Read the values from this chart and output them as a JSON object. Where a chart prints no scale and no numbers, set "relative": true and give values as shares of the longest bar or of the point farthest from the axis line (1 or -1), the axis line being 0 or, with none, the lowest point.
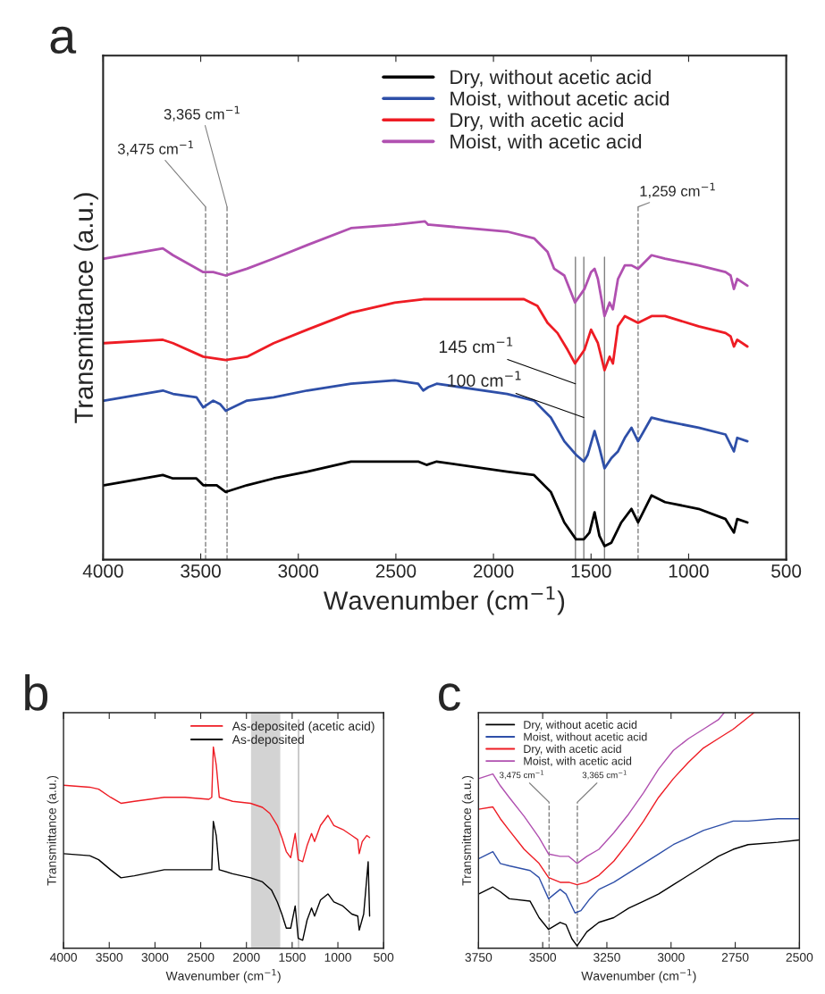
{
  "chart_data": [
    {
      "type": "line",
      "title": "a",
      "relative": true,
      "xlabel": "Wavenumber (cm$^{−1}$)",
      "ylabel": "Transmittance (a.u.)",
      "xlim": [
        4000,
        500
      ],
      "xticks": [
        4000,
        3500,
        3000,
        2500,
        2000,
        1500,
        1000,
        500
      ],
      "legend": "top right",
      "grid": false,
      "series": [
        {
          "name": "Dry, without acetic acid",
          "color": "#000000",
          "x": [
            3995,
            3694,
            3642,
            3522,
            3487,
            3418,
            3372,
            3263,
            3126,
            2954,
            2730,
            2506,
            2386,
            2343,
            2291,
            1930,
            1792,
            1706,
            1637,
            1577,
            1537,
            1508,
            1482,
            1457,
            1431,
            1396,
            1345,
            1293,
            1259,
            1190,
            1121,
            949,
            811,
            768,
            751,
            699
          ],
          "values": [
            0.22,
            0.25,
            0.24,
            0.24,
            0.22,
            0.22,
            0.2,
            0.22,
            0.24,
            0.26,
            0.29,
            0.29,
            0.29,
            0.28,
            0.29,
            0.26,
            0.25,
            0.2,
            0.11,
            0.06,
            0.06,
            0.08,
            0.14,
            0.07,
            0.04,
            0.05,
            0.11,
            0.15,
            0.11,
            0.19,
            0.17,
            0.15,
            0.12,
            0.08,
            0.12,
            0.11
          ]
        },
        {
          "name": "Moist, without acetic acid",
          "color": "#2e4fa8",
          "x": [
            3995,
            3694,
            3642,
            3522,
            3487,
            3436,
            3401,
            3372,
            3263,
            3126,
            2954,
            2730,
            2506,
            2386,
            2360,
            2334,
            2291,
            1930,
            1792,
            1706,
            1637,
            1577,
            1537,
            1517,
            1482,
            1457,
            1431,
            1396,
            1362,
            1327,
            1293,
            1259,
            1190,
            1121,
            949,
            811,
            768,
            751,
            699
          ],
          "values": [
            0.47,
            0.5,
            0.49,
            0.48,
            0.45,
            0.47,
            0.46,
            0.44,
            0.47,
            0.48,
            0.5,
            0.52,
            0.53,
            0.52,
            0.5,
            0.51,
            0.52,
            0.49,
            0.47,
            0.42,
            0.35,
            0.31,
            0.29,
            0.31,
            0.38,
            0.33,
            0.27,
            0.3,
            0.32,
            0.36,
            0.39,
            0.35,
            0.42,
            0.41,
            0.39,
            0.37,
            0.32,
            0.36,
            0.35
          ]
        },
        {
          "name": "Dry, with acetic acid",
          "color": "#ee1c24",
          "x": [
            3995,
            3694,
            3642,
            3487,
            3372,
            3263,
            3126,
            2954,
            2730,
            2506,
            2360,
            1930,
            1844,
            1775,
            1723,
            1672,
            1620,
            1582,
            1534,
            1500,
            1465,
            1431,
            1405,
            1388,
            1362,
            1327,
            1293,
            1259,
            1190,
            1121,
            949,
            811,
            785,
            768,
            751,
            699
          ],
          "values": [
            0.64,
            0.65,
            0.64,
            0.6,
            0.59,
            0.6,
            0.64,
            0.68,
            0.73,
            0.76,
            0.77,
            0.77,
            0.77,
            0.75,
            0.7,
            0.67,
            0.62,
            0.58,
            0.62,
            0.68,
            0.64,
            0.56,
            0.6,
            0.58,
            0.69,
            0.72,
            0.71,
            0.7,
            0.72,
            0.72,
            0.69,
            0.67,
            0.66,
            0.63,
            0.65,
            0.63
          ]
        },
        {
          "name": "Moist, with acetic acid",
          "color": "#b050b0",
          "x": [
            3995,
            3694,
            3642,
            3487,
            3436,
            3372,
            3263,
            3126,
            2954,
            2730,
            2506,
            2351,
            2334,
            2326,
            1930,
            1792,
            1723,
            1689,
            1637,
            1582,
            1534,
            1500,
            1482,
            1465,
            1431,
            1405,
            1388,
            1362,
            1327,
            1293,
            1259,
            1190,
            1121,
            949,
            811,
            785,
            768,
            751,
            699
          ],
          "values": [
            0.89,
            0.92,
            0.9,
            0.85,
            0.85,
            0.84,
            0.86,
            0.89,
            0.93,
            0.98,
            0.99,
            1.0,
            0.99,
            0.99,
            0.97,
            0.95,
            0.91,
            0.86,
            0.84,
            0.76,
            0.8,
            0.85,
            0.86,
            0.83,
            0.72,
            0.76,
            0.74,
            0.83,
            0.87,
            0.87,
            0.86,
            0.9,
            0.89,
            0.87,
            0.85,
            0.84,
            0.8,
            0.83,
            0.81
          ]
        }
      ],
      "ref_lines": [
        {
          "axis": "x",
          "value": 3475,
          "label": "3,475 cm$^{−1}$",
          "color": "#808080",
          "line_style": "dashed"
        },
        {
          "axis": "x",
          "value": 3365,
          "label": "3,365 cm$^{−1}$",
          "color": "#808080",
          "line_style": "dashed"
        },
        {
          "axis": "x",
          "value": 1259,
          "label": "1,259 cm$^{−1}$",
          "color": "#808080",
          "line_style": "dashed"
        },
        {
          "axis": "x",
          "value": 1580,
          "color": "#808080",
          "line_style": "solid"
        },
        {
          "axis": "x",
          "value": 1537,
          "color": "#808080",
          "line_style": "solid"
        },
        {
          "axis": "x",
          "value": 1431,
          "color": "#808080",
          "line_style": "solid"
        }
      ],
      "annotations": [
        {
          "text": "145 cm$^{−1}$",
          "x": 1580,
          "y": 0.52
        },
        {
          "text": "100 cm$^{−1}$",
          "x": 1537,
          "y": 0.42
        }
      ]
    },
    {
      "type": "line",
      "title": "b",
      "relative": true,
      "xlabel": "Wavenumber (cm$^{−1}$)",
      "ylabel": "Transmittance (a.u.)",
      "xlim": [
        4000,
        500
      ],
      "xticks": [
        4000,
        3500,
        3000,
        2500,
        2000,
        1500,
        1000,
        500
      ],
      "legend": "top right",
      "grid": false,
      "series": [
        {
          "name": "As-deposited (acetic acid)",
          "color": "#ee1c24",
          "x": [
            4000,
            3713,
            3616,
            3486,
            3372,
            3225,
            2899,
            2672,
            2411,
            2379,
            2362,
            2330,
            2297,
            2151,
            1955,
            1825,
            1744,
            1662,
            1613,
            1564,
            1516,
            1467,
            1434,
            1385,
            1337,
            1288,
            1255,
            1190,
            1109,
            1044,
            946,
            848,
            783,
            767,
            734,
            685,
            653
          ],
          "values": [
            0.81,
            0.8,
            0.79,
            0.75,
            0.72,
            0.73,
            0.75,
            0.75,
            0.74,
            0.75,
            1.0,
            0.91,
            0.75,
            0.73,
            0.72,
            0.7,
            0.67,
            0.61,
            0.55,
            0.48,
            0.45,
            0.57,
            0.44,
            0.43,
            0.51,
            0.57,
            0.53,
            0.61,
            0.66,
            0.61,
            0.59,
            0.56,
            0.54,
            0.47,
            0.53,
            0.56,
            0.55
          ]
        },
        {
          "name": "As-deposited",
          "color": "#000000",
          "x": [
            4000,
            3713,
            3616,
            3486,
            3372,
            3225,
            2899,
            2672,
            2411,
            2379,
            2362,
            2330,
            2297,
            2151,
            1955,
            1825,
            1727,
            1662,
            1613,
            1564,
            1516,
            1467,
            1434,
            1385,
            1337,
            1288,
            1255,
            1190,
            1109,
            1044,
            946,
            848,
            783,
            767,
            718,
            669,
            653
          ],
          "values": [
            0.47,
            0.46,
            0.44,
            0.39,
            0.35,
            0.36,
            0.39,
            0.39,
            0.39,
            0.39,
            0.63,
            0.56,
            0.39,
            0.37,
            0.35,
            0.33,
            0.29,
            0.23,
            0.17,
            0.1,
            0.1,
            0.21,
            0.05,
            0.04,
            0.14,
            0.2,
            0.16,
            0.24,
            0.27,
            0.23,
            0.21,
            0.17,
            0.16,
            0.09,
            0.17,
            0.43,
            0.16
          ]
        }
      ],
      "bands": [
        {
          "axis": "x",
          "from": 1950,
          "to": 1630,
          "color": "#d3d3d3"
        }
      ],
      "ref_lines": [
        {
          "axis": "x",
          "value": 1430,
          "color": "#b4b4b4",
          "line_style": "solid"
        }
      ]
    },
    {
      "type": "line",
      "title": "c",
      "relative": true,
      "xlabel": "Wavenumber (cm$^{−1}$)",
      "ylabel": "Transmittance (a.u.)",
      "xlim": [
        3750,
        2500
      ],
      "xticks": [
        3750,
        3500,
        3250,
        3000,
        2750,
        2500
      ],
      "legend": "top left",
      "grid": false,
      "series": [
        {
          "name": "Dry, without acetic acid",
          "color": "#000000",
          "x": [
            3750,
            3694,
            3665,
            3630,
            3549,
            3514,
            3477,
            3432,
            3409,
            3386,
            3366,
            3328,
            3281,
            3223,
            3165,
            3107,
            3049,
            2991,
            2932,
            2874,
            2816,
            2758,
            2700,
            2584,
            2500
          ],
          "values": [
            0.23,
            0.26,
            0.24,
            0.21,
            0.2,
            0.13,
            0.08,
            0.11,
            0.1,
            0.04,
            0.01,
            0.07,
            0.11,
            0.13,
            0.17,
            0.2,
            0.23,
            0.27,
            0.31,
            0.35,
            0.39,
            0.42,
            0.44,
            0.45,
            0.46
          ]
        },
        {
          "name": "Moist, without acetic acid",
          "color": "#2e4fa8",
          "x": [
            3750,
            3694,
            3665,
            3630,
            3549,
            3514,
            3477,
            3432,
            3409,
            3374,
            3351,
            3316,
            3281,
            3223,
            3165,
            3107,
            3049,
            2991,
            2932,
            2874,
            2816,
            2758,
            2700,
            2584,
            2500
          ],
          "values": [
            0.38,
            0.41,
            0.36,
            0.35,
            0.33,
            0.3,
            0.21,
            0.25,
            0.23,
            0.15,
            0.16,
            0.21,
            0.25,
            0.28,
            0.32,
            0.36,
            0.4,
            0.44,
            0.47,
            0.5,
            0.52,
            0.54,
            0.54,
            0.55,
            0.55
          ]
        },
        {
          "name": "Dry, with acetic acid",
          "color": "#ee1c24",
          "x": [
            3750,
            3694,
            3665,
            3630,
            3572,
            3514,
            3477,
            3432,
            3398,
            3366,
            3328,
            3281,
            3223,
            3165,
            3107,
            3049,
            2991,
            2932,
            2874,
            2816,
            2758,
            2700,
            2677
          ],
          "values": [
            0.59,
            0.6,
            0.55,
            0.5,
            0.42,
            0.36,
            0.3,
            0.28,
            0.28,
            0.27,
            0.28,
            0.31,
            0.37,
            0.45,
            0.54,
            0.64,
            0.72,
            0.79,
            0.85,
            0.89,
            0.93,
            0.98,
            1.0
          ]
        },
        {
          "name": "Moist, with acetic acid",
          "color": "#b050b0",
          "x": [
            3750,
            3694,
            3665,
            3630,
            3572,
            3514,
            3477,
            3432,
            3398,
            3366,
            3328,
            3281,
            3223,
            3165,
            3107,
            3049,
            2991,
            2932,
            2874,
            2816,
            2793
          ],
          "values": [
            0.72,
            0.74,
            0.69,
            0.64,
            0.56,
            0.47,
            0.4,
            0.39,
            0.39,
            0.36,
            0.39,
            0.42,
            0.49,
            0.57,
            0.66,
            0.76,
            0.84,
            0.89,
            0.93,
            0.97,
            1.0
          ]
        }
      ],
      "ref_lines": [
        {
          "axis": "x",
          "value": 3475,
          "label": "3,475 cm$^{−1}$",
          "color": "#808080",
          "line_style": "dashed"
        },
        {
          "axis": "x",
          "value": 3365,
          "label": "3,365 cm$^{−1}$",
          "color": "#808080",
          "line_style": "dashed"
        }
      ]
    }
  ]
}
